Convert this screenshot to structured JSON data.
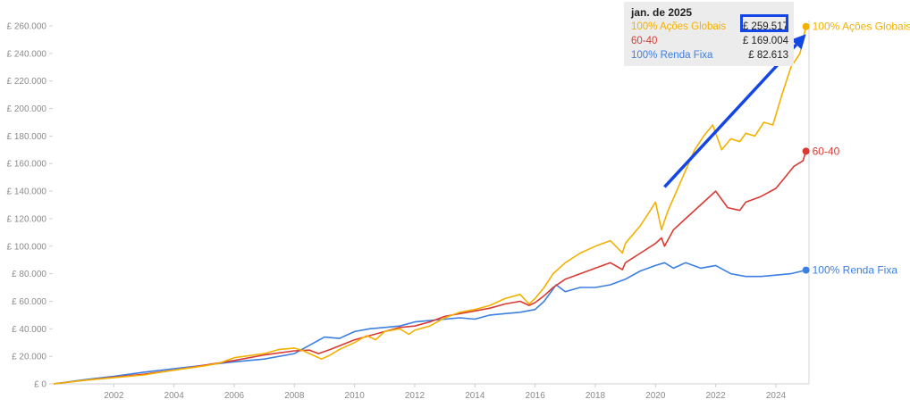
{
  "chart_data": {
    "type": "line",
    "ylim": [
      0,
      260000
    ],
    "xlim": [
      2000.0,
      2025.1
    ],
    "y_ticks": [
      {
        "value": 0,
        "label": "£ 0"
      },
      {
        "value": 20000,
        "label": "£ 20.000"
      },
      {
        "value": 40000,
        "label": "£ 40.000"
      },
      {
        "value": 60000,
        "label": "£ 60.000"
      },
      {
        "value": 80000,
        "label": "£ 80.000"
      },
      {
        "value": 100000,
        "label": "£ 100.000"
      },
      {
        "value": 120000,
        "label": "£ 120.000"
      },
      {
        "value": 140000,
        "label": "£ 140.000"
      },
      {
        "value": 160000,
        "label": "£ 160.000"
      },
      {
        "value": 180000,
        "label": "£ 180.000"
      },
      {
        "value": 200000,
        "label": "£ 200.000"
      },
      {
        "value": 220000,
        "label": "£ 220.000"
      },
      {
        "value": 240000,
        "label": "£ 240.000"
      },
      {
        "value": 260000,
        "label": "£ 260.000"
      }
    ],
    "x_ticks": [
      {
        "value": 2002,
        "label": "2002"
      },
      {
        "value": 2004,
        "label": "2004"
      },
      {
        "value": 2006,
        "label": "2006"
      },
      {
        "value": 2008,
        "label": "2008"
      },
      {
        "value": 2010,
        "label": "2010"
      },
      {
        "value": 2012,
        "label": "2012"
      },
      {
        "value": 2014,
        "label": "2014"
      },
      {
        "value": 2016,
        "label": "2016"
      },
      {
        "value": 2018,
        "label": "2018"
      },
      {
        "value": 2020,
        "label": "2020"
      },
      {
        "value": 2022,
        "label": "2022"
      },
      {
        "value": 2024,
        "label": "2024"
      }
    ],
    "grid": false,
    "legend": "end-of-line labels (right)",
    "series": [
      {
        "name": "100% Ações Globais",
        "color": "#f2b100",
        "points": [
          [
            2000.0,
            0
          ],
          [
            2001.0,
            2500
          ],
          [
            2002.0,
            4500
          ],
          [
            2003.0,
            6500
          ],
          [
            2004.0,
            10000
          ],
          [
            2005.0,
            13000
          ],
          [
            2005.5,
            15000
          ],
          [
            2006.0,
            19000
          ],
          [
            2007.0,
            22000
          ],
          [
            2007.5,
            25000
          ],
          [
            2008.0,
            26000
          ],
          [
            2008.3,
            24000
          ],
          [
            2008.6,
            21000
          ],
          [
            2008.9,
            18000
          ],
          [
            2009.2,
            21000
          ],
          [
            2009.5,
            25000
          ],
          [
            2010.0,
            30000
          ],
          [
            2010.4,
            35000
          ],
          [
            2010.7,
            32000
          ],
          [
            2011.0,
            38000
          ],
          [
            2011.5,
            40000
          ],
          [
            2011.8,
            36000
          ],
          [
            2012.0,
            39000
          ],
          [
            2012.5,
            42000
          ],
          [
            2013.0,
            48000
          ],
          [
            2013.5,
            52000
          ],
          [
            2014.0,
            54000
          ],
          [
            2014.5,
            57000
          ],
          [
            2015.0,
            62000
          ],
          [
            2015.5,
            65000
          ],
          [
            2015.8,
            58000
          ],
          [
            2016.0,
            62000
          ],
          [
            2016.3,
            70000
          ],
          [
            2016.6,
            80000
          ],
          [
            2017.0,
            88000
          ],
          [
            2017.5,
            95000
          ],
          [
            2018.0,
            100000
          ],
          [
            2018.5,
            104000
          ],
          [
            2018.9,
            95000
          ],
          [
            2019.0,
            102000
          ],
          [
            2019.5,
            115000
          ],
          [
            2019.8,
            125000
          ],
          [
            2020.0,
            132000
          ],
          [
            2020.2,
            112000
          ],
          [
            2020.4,
            125000
          ],
          [
            2020.7,
            140000
          ],
          [
            2021.0,
            155000
          ],
          [
            2021.3,
            170000
          ],
          [
            2021.6,
            180000
          ],
          [
            2021.9,
            188000
          ],
          [
            2022.2,
            170000
          ],
          [
            2022.5,
            178000
          ],
          [
            2022.8,
            176000
          ],
          [
            2023.0,
            182000
          ],
          [
            2023.3,
            180000
          ],
          [
            2023.6,
            190000
          ],
          [
            2023.9,
            188000
          ],
          [
            2024.2,
            210000
          ],
          [
            2024.5,
            230000
          ],
          [
            2024.8,
            240000
          ],
          [
            2025.0,
            259517
          ]
        ]
      },
      {
        "name": "60-40",
        "color": "#d93a33",
        "points": [
          [
            2000.0,
            0
          ],
          [
            2001.0,
            2500
          ],
          [
            2002.0,
            4800
          ],
          [
            2003.0,
            7000
          ],
          [
            2004.0,
            10000
          ],
          [
            2005.0,
            13500
          ],
          [
            2006.0,
            17000
          ],
          [
            2007.0,
            21000
          ],
          [
            2008.0,
            24000
          ],
          [
            2008.5,
            24500
          ],
          [
            2008.8,
            22000
          ],
          [
            2009.2,
            25000
          ],
          [
            2010.0,
            32000
          ],
          [
            2010.5,
            35000
          ],
          [
            2011.0,
            38000
          ],
          [
            2011.5,
            41000
          ],
          [
            2012.0,
            42000
          ],
          [
            2012.5,
            45000
          ],
          [
            2013.0,
            49000
          ],
          [
            2013.5,
            51000
          ],
          [
            2014.0,
            53000
          ],
          [
            2014.5,
            55000
          ],
          [
            2015.0,
            58000
          ],
          [
            2015.5,
            60000
          ],
          [
            2015.8,
            57000
          ],
          [
            2016.0,
            59000
          ],
          [
            2016.3,
            64000
          ],
          [
            2016.6,
            70000
          ],
          [
            2017.0,
            76000
          ],
          [
            2017.5,
            80000
          ],
          [
            2018.0,
            84000
          ],
          [
            2018.5,
            88000
          ],
          [
            2018.9,
            83000
          ],
          [
            2019.0,
            88000
          ],
          [
            2019.5,
            95000
          ],
          [
            2020.0,
            102000
          ],
          [
            2020.2,
            106000
          ],
          [
            2020.3,
            100000
          ],
          [
            2020.6,
            112000
          ],
          [
            2021.0,
            120000
          ],
          [
            2021.5,
            130000
          ],
          [
            2022.0,
            140000
          ],
          [
            2022.4,
            128000
          ],
          [
            2022.8,
            126000
          ],
          [
            2023.0,
            132000
          ],
          [
            2023.5,
            136000
          ],
          [
            2024.0,
            142000
          ],
          [
            2024.3,
            150000
          ],
          [
            2024.6,
            158000
          ],
          [
            2024.9,
            162000
          ],
          [
            2025.0,
            169004
          ]
        ]
      },
      {
        "name": "100% Renda Fixa",
        "color": "#3d7fe0",
        "points": [
          [
            2000.0,
            0
          ],
          [
            2001.0,
            3000
          ],
          [
            2002.0,
            5500
          ],
          [
            2003.0,
            8500
          ],
          [
            2004.0,
            11000
          ],
          [
            2005.0,
            13500
          ],
          [
            2006.0,
            16000
          ],
          [
            2007.0,
            18000
          ],
          [
            2008.0,
            22000
          ],
          [
            2008.5,
            28000
          ],
          [
            2009.0,
            34000
          ],
          [
            2009.5,
            33000
          ],
          [
            2010.0,
            38000
          ],
          [
            2010.5,
            40000
          ],
          [
            2011.0,
            41000
          ],
          [
            2011.5,
            42000
          ],
          [
            2012.0,
            45000
          ],
          [
            2012.5,
            46000
          ],
          [
            2013.0,
            47000
          ],
          [
            2013.5,
            48000
          ],
          [
            2014.0,
            47000
          ],
          [
            2014.5,
            50000
          ],
          [
            2015.0,
            51000
          ],
          [
            2015.5,
            52000
          ],
          [
            2016.0,
            54000
          ],
          [
            2016.3,
            60000
          ],
          [
            2016.7,
            72000
          ],
          [
            2017.0,
            67000
          ],
          [
            2017.5,
            70000
          ],
          [
            2018.0,
            70000
          ],
          [
            2018.5,
            72000
          ],
          [
            2019.0,
            76000
          ],
          [
            2019.5,
            82000
          ],
          [
            2020.0,
            86000
          ],
          [
            2020.3,
            88000
          ],
          [
            2020.6,
            84000
          ],
          [
            2021.0,
            88000
          ],
          [
            2021.5,
            84000
          ],
          [
            2022.0,
            86000
          ],
          [
            2022.5,
            80000
          ],
          [
            2023.0,
            78000
          ],
          [
            2023.5,
            78000
          ],
          [
            2024.0,
            79000
          ],
          [
            2024.5,
            80000
          ],
          [
            2025.0,
            82613
          ]
        ]
      }
    ],
    "tooltip": {
      "title": "jan. de 2025",
      "rows": [
        {
          "name": "100% Ações Globais",
          "value": "£ 259.517",
          "color": "#f2b100"
        },
        {
          "name": "60-40",
          "value": "£ 169.004",
          "color": "#d93a33"
        },
        {
          "name": "100% Renda Fixa",
          "value": "£ 82.613",
          "color": "#3d7fe0"
        }
      ]
    },
    "annotation": {
      "type": "arrow",
      "color": "#1446e6",
      "from": [
        2020.3,
        143000
      ],
      "to": [
        2025.0,
        254000
      ]
    }
  }
}
